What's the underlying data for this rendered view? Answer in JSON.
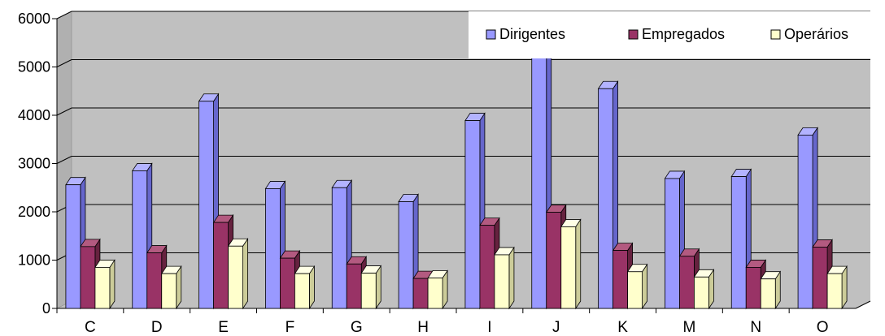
{
  "chart_data": {
    "type": "bar",
    "title": "",
    "xlabel": "",
    "ylabel": "",
    "ylim": [
      0,
      6000
    ],
    "yticks": [
      "0",
      "1000",
      "2000",
      "3000",
      "4000",
      "5000",
      "6000"
    ],
    "grid": true,
    "legend_position": "top-right",
    "categories": [
      "C",
      "D",
      "E",
      "F",
      "G",
      "H",
      "I",
      "J",
      "K",
      "M",
      "N",
      "O"
    ],
    "series": [
      {
        "name": "Dirigentes",
        "color": "#9999ff",
        "values": [
          2560,
          2850,
          4290,
          2480,
          2500,
          2210,
          3890,
          5280,
          4550,
          2690,
          2730,
          3590
        ]
      },
      {
        "name": "Empregados",
        "color": "#993366",
        "values": [
          1280,
          1150,
          1780,
          1040,
          920,
          620,
          1720,
          1990,
          1200,
          1080,
          850,
          1270
        ]
      },
      {
        "name": "Operários",
        "color": "#ffffcc",
        "values": [
          850,
          720,
          1290,
          720,
          730,
          630,
          1110,
          1690,
          760,
          650,
          610,
          720
        ]
      }
    ],
    "colors": {
      "plot_background": "#c0c0c0",
      "gridline": "#000000",
      "dirigentes_side": "#6666cc",
      "dirigentes_top": "#b3b3ff",
      "empregados_side": "#66223f",
      "empregados_top": "#b35a80",
      "operarios_side": "#cccc99",
      "operarios_top": "#ffffe6"
    }
  }
}
